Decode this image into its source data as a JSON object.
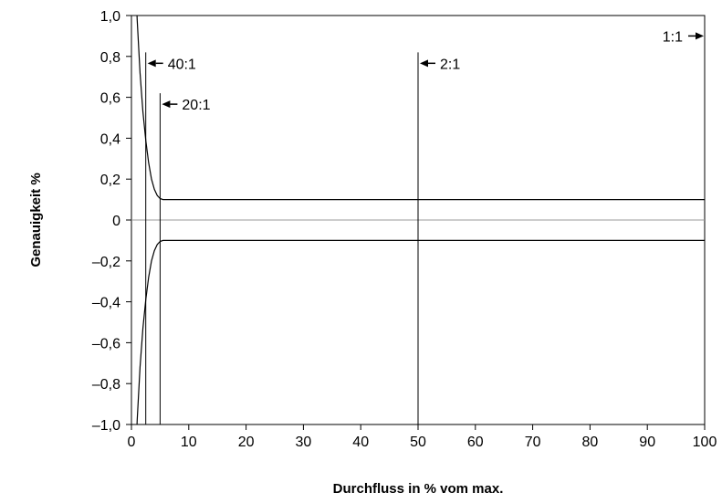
{
  "chart_data": {
    "type": "line",
    "xlabel": "Durchfluss in % vom max.",
    "ylabel": "Genauigkeit %",
    "xlim": [
      0,
      100
    ],
    "ylim": [
      -1.0,
      1.0
    ],
    "x_ticks": [
      0,
      10,
      20,
      30,
      40,
      50,
      60,
      70,
      80,
      90,
      100
    ],
    "y_ticks": [
      1.0,
      0.8,
      0.6,
      0.4,
      0.2,
      0,
      -0.2,
      -0.4,
      -0.6,
      -0.8,
      -1.0
    ],
    "x_tick_labels": [
      "0",
      "10",
      "20",
      "30",
      "40",
      "50",
      "60",
      "70",
      "80",
      "90",
      "100"
    ],
    "y_tick_labels": [
      "1,0",
      "0,8",
      "0,6",
      "0,4",
      "0,2",
      "0",
      "–0,2",
      "–0,4",
      "–0,6",
      "–0,8",
      "–1,0"
    ],
    "grid": false,
    "series": [
      {
        "x": [
          0.5,
          1.0,
          1.5,
          2.0,
          2.5,
          3.0,
          3.5,
          4.0,
          4.5,
          5.0,
          5.5,
          10,
          20,
          30,
          40,
          50,
          60,
          70,
          80,
          90,
          100
        ],
        "values": [
          1.35,
          0.98,
          0.72,
          0.53,
          0.39,
          0.28,
          0.2,
          0.15,
          0.12,
          0.105,
          0.1,
          0.1,
          0.1,
          0.1,
          0.1,
          0.1,
          0.1,
          0.1,
          0.1,
          0.1,
          0.1
        ]
      },
      {
        "x": [
          0.5,
          1.0,
          1.5,
          2.0,
          2.5,
          3.0,
          3.5,
          4.0,
          4.5,
          5.0,
          5.5,
          10,
          20,
          30,
          40,
          50,
          60,
          70,
          80,
          90,
          100
        ],
        "values": [
          -1.35,
          -0.98,
          -0.72,
          -0.53,
          -0.39,
          -0.28,
          -0.2,
          -0.15,
          -0.12,
          -0.105,
          -0.1,
          -0.1,
          -0.1,
          -0.1,
          -0.1,
          -0.1,
          -0.1,
          -0.1,
          -0.1,
          -0.1,
          -0.1
        ]
      }
    ],
    "reference_lines": [
      {
        "x": 2.5,
        "top": 0.82,
        "label": "40:1"
      },
      {
        "x": 5,
        "top": 0.62,
        "label": "20:1"
      },
      {
        "x": 50,
        "top": 0.82,
        "label": "2:1"
      }
    ],
    "edge_annotation": {
      "x": 100,
      "y": 0.9,
      "label": "1:1"
    },
    "zero_line_color": "#999999"
  }
}
